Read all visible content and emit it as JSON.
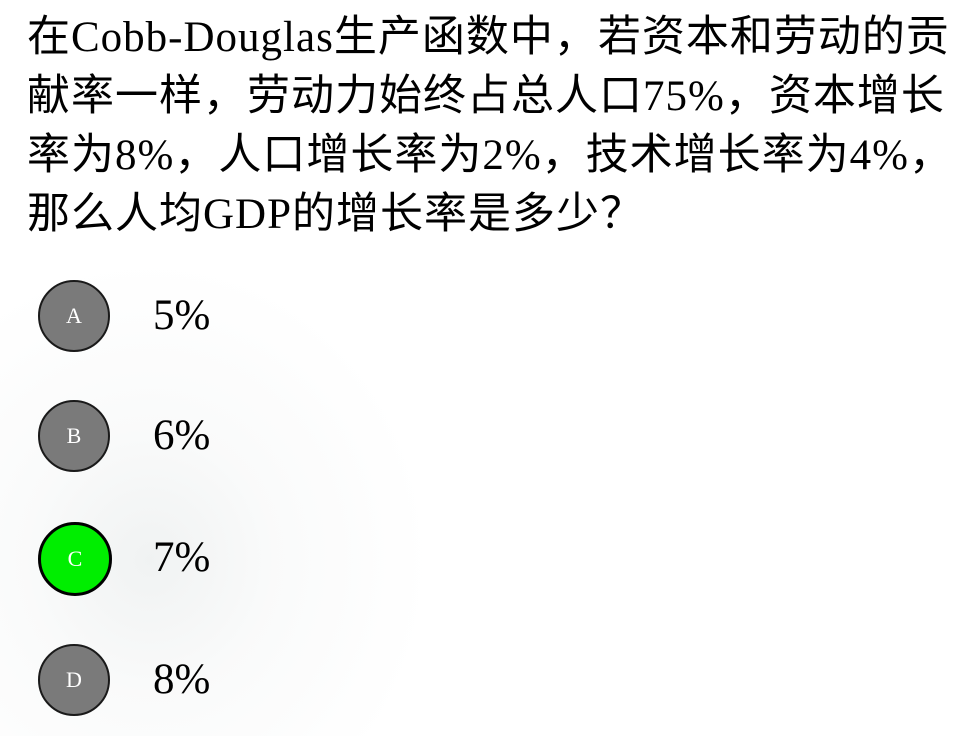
{
  "question": {
    "text": "在Cobb-Douglas生产函数中，若资本和劳动的贡献率一样，劳动力始终占总人口75%，资本增长率为8%，人口增长率为2%，技术增长率为4%，那么人均GDP的增长率是多少？"
  },
  "options": [
    {
      "letter": "A",
      "text": "5%",
      "selected": false
    },
    {
      "letter": "B",
      "text": "6%",
      "selected": false
    },
    {
      "letter": "C",
      "text": "7%",
      "selected": true
    },
    {
      "letter": "D",
      "text": "8%",
      "selected": false
    }
  ],
  "colors": {
    "option_circle": "#7a7a7a",
    "selected_circle": "#00ee00",
    "text": "#000000",
    "background": "#ffffff"
  }
}
